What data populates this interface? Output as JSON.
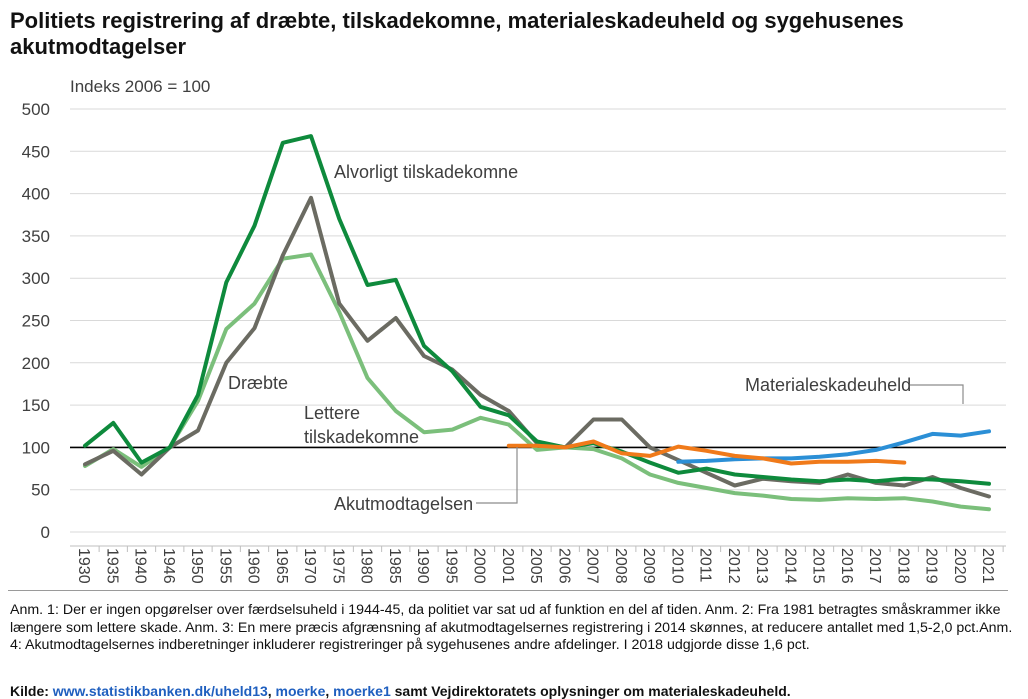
{
  "title": "Politiets registrering af dræbte, tilskadekomne, materialeskadeuheld og sygehusenes akutmodtagelser",
  "notes": "Anm. 1: Der er ingen opgørelser over færdselsuheld i 1944-45, da politiet var sat ud af funktion en del af tiden. Anm. 2: Fra 1981 betragtes småskrammer ikke længere som lettere skade. Anm. 3: En mere præcis afgrænsning af akutmodtagelsernes registrering i 2014 skønnes, at reducere antallet med 1,5-2,0 pct.Anm. 4: Akutmodtagelsernes indberetninger inkluderer registreringer på sygehusenes andre afdelinger. I 2018 udgjorde disse 1,6 pct.",
  "source": {
    "prefix": "Kilde: ",
    "link1": "www.statistikbanken.dk/uheld13",
    "sep1": ", ",
    "link2": "moerke",
    "sep2": ", ",
    "link3": "moerke1",
    "suffix": " samt Vejdirektoratets oplysninger om materialeskadeuheld."
  },
  "chart_data": {
    "type": "line",
    "ylabel": "Indeks 2006 = 100",
    "ylim": [
      0,
      500
    ],
    "yticks": [
      0,
      50,
      100,
      150,
      200,
      250,
      300,
      350,
      400,
      450,
      500
    ],
    "grid": true,
    "reference_line": 100,
    "categories": [
      "1930",
      "1935",
      "1940",
      "1946",
      "1950",
      "1955",
      "1960",
      "1965",
      "1970",
      "1975",
      "1980",
      "1985",
      "1990",
      "1995",
      "2000",
      "2001",
      "2005",
      "2006",
      "2007",
      "2008",
      "2009",
      "2010",
      "2011",
      "2012",
      "2013",
      "2014",
      "2015",
      "2016",
      "2017",
      "2018",
      "2019",
      "2020",
      "2021"
    ],
    "series": [
      {
        "name": "Alvorligt tilskadekomne",
        "color": "#0e8a3c",
        "values": [
          102,
          129,
          82,
          100,
          162,
          295,
          362,
          460,
          468,
          370,
          292,
          298,
          220,
          190,
          148,
          138,
          107,
          100,
          105,
          95,
          82,
          70,
          75,
          68,
          65,
          62,
          60,
          62,
          60,
          63,
          62,
          60,
          57
        ]
      },
      {
        "name": "Dræbte",
        "color": "#6b6b62",
        "values": [
          80,
          96,
          68,
          100,
          120,
          200,
          241,
          327,
          395,
          270,
          226,
          253,
          208,
          192,
          162,
          143,
          105,
          100,
          133,
          133,
          100,
          85,
          70,
          55,
          63,
          60,
          58,
          68,
          58,
          55,
          65,
          52,
          42
        ]
      },
      {
        "name": "Lettere tilskadekomne",
        "color": "#7bbf7b",
        "values": [
          78,
          98,
          77,
          100,
          155,
          240,
          270,
          323,
          328,
          260,
          182,
          143,
          118,
          121,
          135,
          127,
          97,
          100,
          98,
          87,
          68,
          58,
          52,
          46,
          43,
          39,
          38,
          40,
          39,
          40,
          36,
          30,
          27
        ]
      },
      {
        "name": "Akutmodtagelsen",
        "color": "#f07a1a",
        "values": [
          null,
          null,
          null,
          null,
          null,
          null,
          null,
          null,
          null,
          null,
          null,
          null,
          null,
          null,
          null,
          102,
          102,
          100,
          107,
          93,
          90,
          101,
          96,
          90,
          87,
          81,
          83,
          83,
          84,
          82,
          null,
          null,
          null
        ]
      },
      {
        "name": "Materialeskadeuheld",
        "color": "#2b8fd6",
        "values": [
          null,
          null,
          null,
          null,
          null,
          null,
          null,
          null,
          null,
          null,
          null,
          null,
          null,
          null,
          null,
          null,
          null,
          null,
          null,
          null,
          null,
          83,
          84,
          86,
          87,
          87,
          89,
          92,
          97,
          106,
          116,
          114,
          119
        ]
      }
    ],
    "annotations": [
      {
        "text": "Alvorligt tilskadekomne"
      },
      {
        "text": "Dræbte"
      },
      {
        "text": "Lettere"
      },
      {
        "text": "tilskadekomne"
      },
      {
        "text": "Materialeskadeuheld"
      },
      {
        "text": "Akutmodtagelsen"
      }
    ]
  }
}
